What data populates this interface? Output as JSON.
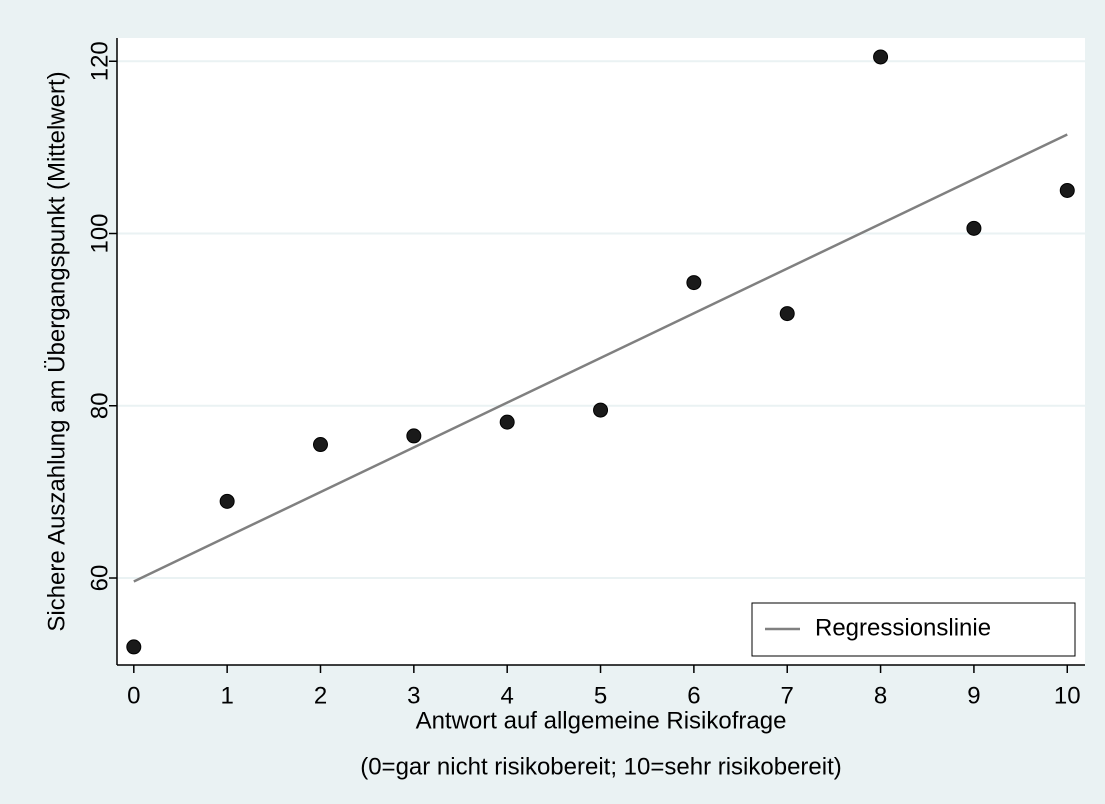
{
  "chart_data": {
    "type": "scatter",
    "y_label": "Sichere Auszahlung am Übergangspunkt (Mittelwert)",
    "x_label": [
      "Antwort auf allgemeine Risikofrage",
      "(0=gar nicht risikobereit; 10=sehr risikobereit)"
    ],
    "x": [
      0,
      1,
      2,
      3,
      4,
      5,
      6,
      7,
      8,
      9,
      10
    ],
    "series": [
      {
        "type": "scatter",
        "color": "#1a1a1a",
        "values": [
          52.0,
          68.9,
          75.5,
          76.5,
          78.1,
          79.5,
          94.3,
          90.7,
          120.5,
          100.6,
          105.0
        ]
      },
      {
        "type": "line",
        "name": "Regressionslinie",
        "color": "#808080",
        "x": [
          0,
          10
        ],
        "values": [
          59.6,
          111.5
        ]
      }
    ],
    "xlim": [
      -0.18,
      10.19
    ],
    "ylim": [
      49.9,
      122.7
    ],
    "xticks": [
      0,
      1,
      2,
      3,
      4,
      5,
      6,
      7,
      8,
      9,
      10
    ],
    "yticks": [
      60,
      80,
      100,
      120
    ],
    "grid": true,
    "legend": "lower right"
  }
}
